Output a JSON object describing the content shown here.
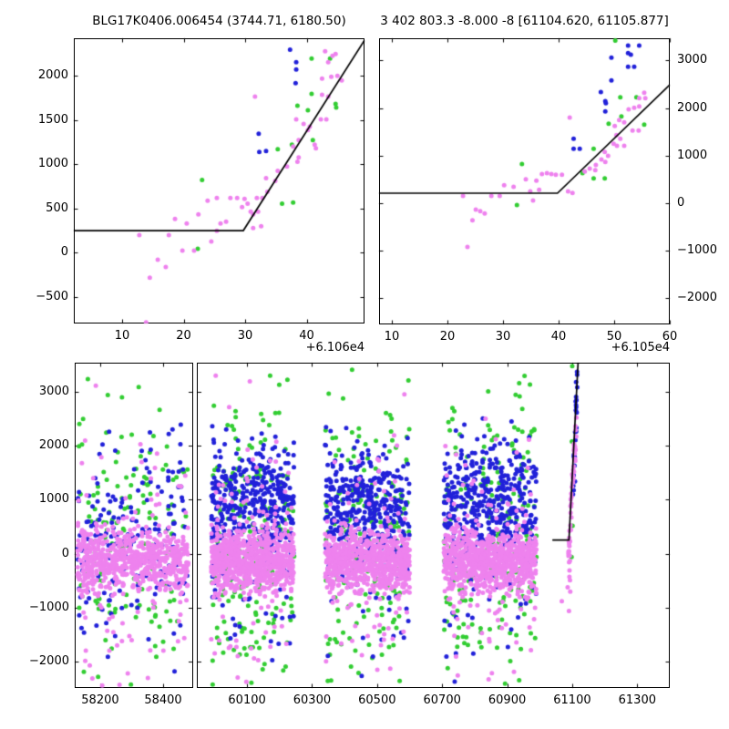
{
  "colors": {
    "pink": "#EE82EE",
    "green": "#32CD32",
    "blue": "#2121D9",
    "model_line": "#000000",
    "background": "#FFFFFF"
  },
  "chart_data": {
    "type": "scatter",
    "top_left": {
      "title": "BLG17K0406.006454 (3744.71, 6180.50)",
      "x_offset_label": "+6.106e4",
      "x_ticks": [
        10,
        20,
        30,
        40
      ],
      "y_ticks": [
        -500,
        0,
        500,
        1000,
        1500,
        2000
      ],
      "x_range": [
        2.15,
        49.4
      ],
      "y_range": [
        -804,
        2423
      ],
      "model_line": [
        [
          2.15,
          247
        ],
        [
          29.7,
          247
        ],
        [
          49.4,
          2400
        ]
      ],
      "points": {
        "pink": [
          [
            43.0,
            2275
          ],
          [
            44.2,
            2224
          ],
          [
            44.7,
            2244
          ],
          [
            43.5,
            2152
          ],
          [
            42.5,
            1968
          ],
          [
            44.0,
            1988
          ],
          [
            45.0,
            1998
          ],
          [
            45.7,
            1947
          ],
          [
            42.5,
            1783
          ],
          [
            43.5,
            1762
          ],
          [
            31.6,
            1762
          ],
          [
            38.3,
            1506
          ],
          [
            39.5,
            1455
          ],
          [
            40.5,
            1424
          ],
          [
            42.3,
            1506
          ],
          [
            43.2,
            1506
          ],
          [
            40.2,
            1383
          ],
          [
            38.7,
            1270
          ],
          [
            41.3,
            1219
          ],
          [
            41.5,
            1178
          ],
          [
            38.7,
            1076
          ],
          [
            37.8,
            1199
          ],
          [
            36.8,
            973
          ],
          [
            38.5,
            1025
          ],
          [
            33.4,
            840
          ],
          [
            35.3,
            922
          ],
          [
            34.9,
            810
          ],
          [
            33.6,
            687
          ],
          [
            31.9,
            615
          ],
          [
            32.8,
            615
          ],
          [
            30.9,
            461
          ],
          [
            32.1,
            461
          ],
          [
            27.6,
            615
          ],
          [
            28.7,
            615
          ],
          [
            29.9,
            605
          ],
          [
            30.4,
            553
          ],
          [
            31.3,
            430
          ],
          [
            29.5,
            512
          ],
          [
            23.9,
            584
          ],
          [
            25.4,
            615
          ],
          [
            18.6,
            379
          ],
          [
            20.5,
            328
          ],
          [
            22.4,
            430
          ],
          [
            26.0,
            328
          ],
          [
            26.9,
            348
          ],
          [
            32.6,
            297
          ],
          [
            31.3,
            276
          ],
          [
            25.4,
            246
          ],
          [
            12.8,
            195
          ],
          [
            17.6,
            195
          ],
          [
            24.5,
            123
          ],
          [
            19.8,
            20
          ],
          [
            21.7,
            20
          ],
          [
            15.8,
            -82
          ],
          [
            17.1,
            -164
          ],
          [
            14.5,
            -287
          ],
          [
            13.9,
            -790
          ]
        ],
        "green": [
          [
            40.8,
            2193
          ],
          [
            43.8,
            2193
          ],
          [
            40.8,
            1793
          ],
          [
            38.5,
            1660
          ],
          [
            40.2,
            1608
          ],
          [
            44.7,
            1680
          ],
          [
            44.8,
            1640
          ],
          [
            41.0,
            1270
          ],
          [
            35.3,
            1168
          ],
          [
            37.6,
            1219
          ],
          [
            23.0,
            820
          ],
          [
            36.0,
            553
          ],
          [
            37.8,
            564
          ],
          [
            22.3,
            41
          ]
        ],
        "blue": [
          [
            37.3,
            2295
          ],
          [
            38.3,
            2152
          ],
          [
            38.3,
            2070
          ],
          [
            38.2,
            1916
          ],
          [
            32.2,
            1342
          ],
          [
            32.3,
            1137
          ],
          [
            33.4,
            1147
          ]
        ]
      }
    },
    "top_right": {
      "title": "3 402 803.3 -8.000 -8 [61104.620, 61105.877]",
      "x_offset_label": "+6.105e4",
      "x_ticks": [
        10,
        20,
        30,
        40,
        50,
        60
      ],
      "y_ticks": [
        -2000,
        -1000,
        0,
        1000,
        2000,
        3000
      ],
      "x_range": [
        7.7,
        60.0
      ],
      "y_range": [
        -2548,
        3467
      ],
      "model_line": [
        [
          7.7,
          210
        ],
        [
          39.8,
          210
        ],
        [
          60.0,
          2490
        ]
      ],
      "points": {
        "pink": [
          [
            55.4,
            2324
          ],
          [
            54.5,
            2209
          ],
          [
            55.6,
            2209
          ],
          [
            53.6,
            2006
          ],
          [
            54.5,
            2037
          ],
          [
            52.6,
            1973
          ],
          [
            50.9,
            1749
          ],
          [
            51.8,
            1699
          ],
          [
            50.1,
            1622
          ],
          [
            53.3,
            1526
          ],
          [
            54.4,
            1526
          ],
          [
            50.4,
            1431
          ],
          [
            51.1,
            1354
          ],
          [
            49.9,
            1251
          ],
          [
            50.5,
            1207
          ],
          [
            51.8,
            1207
          ],
          [
            48.3,
            1078
          ],
          [
            48.9,
            996
          ],
          [
            47.7,
            920
          ],
          [
            48.4,
            868
          ],
          [
            46.7,
            805
          ],
          [
            45.6,
            728
          ],
          [
            46.6,
            696
          ],
          [
            44.7,
            665
          ],
          [
            42.0,
            1801
          ],
          [
            41.7,
            249
          ],
          [
            42.5,
            217
          ],
          [
            40.6,
            600
          ],
          [
            39.5,
            600
          ],
          [
            38.7,
            613
          ],
          [
            37.9,
            632
          ],
          [
            37.0,
            613
          ],
          [
            36.0,
            473
          ],
          [
            34.1,
            504
          ],
          [
            31.9,
            345
          ],
          [
            30.2,
            377
          ],
          [
            29.4,
            153
          ],
          [
            27.9,
            153
          ],
          [
            25.9,
            -167
          ],
          [
            25.1,
            -134
          ],
          [
            26.7,
            -217
          ],
          [
            24.5,
            -358
          ],
          [
            22.8,
            153
          ],
          [
            23.6,
            -920
          ],
          [
            35.4,
            57
          ],
          [
            36.5,
            282
          ],
          [
            34.9,
            249
          ]
        ],
        "green": [
          [
            50.2,
            3420
          ],
          [
            51.1,
            2228
          ],
          [
            51.3,
            1826
          ],
          [
            54.0,
            2228
          ],
          [
            55.4,
            1653
          ],
          [
            49.0,
            1672
          ],
          [
            46.3,
            1143
          ],
          [
            44.3,
            632
          ],
          [
            33.4,
            824
          ],
          [
            46.3,
            523
          ],
          [
            48.3,
            523
          ],
          [
            32.5,
            -38
          ]
        ],
        "blue": [
          [
            52.5,
            3315
          ],
          [
            54.5,
            3315
          ],
          [
            52.5,
            3155
          ],
          [
            53.0,
            3120
          ],
          [
            49.5,
            3059
          ],
          [
            52.5,
            2868
          ],
          [
            53.6,
            2868
          ],
          [
            49.5,
            2580
          ],
          [
            47.6,
            2337
          ],
          [
            48.4,
            2146
          ],
          [
            48.5,
            2100
          ],
          [
            48.4,
            1929
          ],
          [
            42.7,
            1354
          ],
          [
            42.7,
            1143
          ],
          [
            43.8,
            1143
          ]
        ]
      }
    },
    "bottom": {
      "y_ticks": [
        -2000,
        -1000,
        0,
        1000,
        2000,
        3000
      ],
      "y_range": [
        -2488,
        3542
      ],
      "left_sub": {
        "x_ticks": [
          58200,
          58400
        ],
        "x_range": [
          58119,
          58494
        ]
      },
      "right_sub": {
        "x_ticks": [
          60100,
          60300,
          60500,
          60700,
          60900,
          61100,
          61300
        ],
        "x_range": [
          59947,
          61400
        ]
      },
      "model_line": [
        [
          61039,
          255
        ],
        [
          61090,
          255
        ],
        [
          61118,
          3542
        ]
      ],
      "clusters": [
        {
          "sub": "left",
          "x_min": 58128,
          "x_max": 58480,
          "series": [
            {
              "color": "green",
              "n": 150,
              "dist": "gauss",
              "mean": 300,
              "sd": 1400,
              "clip": [
                -2470,
                3430
              ]
            },
            {
              "color": "blue",
              "n": 170,
              "dist": "gauss",
              "mean": 450,
              "sd": 800,
              "clip": [
                -2400,
                3300
              ]
            },
            {
              "color": "blue",
              "n": 18,
              "dist": "gauss",
              "mean": -700,
              "sd": 650,
              "clip": [
                -2430,
                0
              ]
            },
            {
              "color": "pink",
              "n": 95,
              "dist": "gauss",
              "mean": -150,
              "sd": 1300,
              "clip": [
                -2470,
                3400
              ]
            },
            {
              "color": "pink",
              "n": 650,
              "dist": "gauss",
              "mean": -140,
              "sd": 270,
              "clip": [
                -900,
                700
              ]
            }
          ]
        },
        {
          "sub": "right",
          "x_min": 59990,
          "x_max": 60245,
          "series": [
            {
              "color": "green",
              "n": 190,
              "dist": "gauss",
              "mean": 300,
              "sd": 1400,
              "clip": [
                -2470,
                3430
              ]
            },
            {
              "color": "blue",
              "n": 420,
              "dist": "gauss",
              "mean": 850,
              "sd": 620,
              "clip": [
                -2350,
                3400
              ]
            },
            {
              "color": "blue",
              "n": 30,
              "dist": "gauss",
              "mean": -600,
              "sd": 700,
              "clip": [
                -2430,
                100
              ]
            },
            {
              "color": "pink",
              "n": 105,
              "dist": "gauss",
              "mean": -150,
              "sd": 1300,
              "clip": [
                -2470,
                3400
              ]
            },
            {
              "color": "pink",
              "n": 760,
              "dist": "gauss",
              "mean": -140,
              "sd": 270,
              "clip": [
                -950,
                700
              ]
            }
          ]
        },
        {
          "sub": "right",
          "x_min": 60340,
          "x_max": 60600,
          "series": [
            {
              "color": "green",
              "n": 180,
              "dist": "gauss",
              "mean": 300,
              "sd": 1400,
              "clip": [
                -2470,
                3430
              ]
            },
            {
              "color": "blue",
              "n": 400,
              "dist": "gauss",
              "mean": 850,
              "sd": 620,
              "clip": [
                -2350,
                3400
              ]
            },
            {
              "color": "blue",
              "n": 28,
              "dist": "gauss",
              "mean": -600,
              "sd": 700,
              "clip": [
                -2430,
                100
              ]
            },
            {
              "color": "pink",
              "n": 100,
              "dist": "gauss",
              "mean": -150,
              "sd": 1300,
              "clip": [
                -2470,
                3400
              ]
            },
            {
              "color": "pink",
              "n": 740,
              "dist": "gauss",
              "mean": -140,
              "sd": 270,
              "clip": [
                -950,
                700
              ]
            }
          ]
        },
        {
          "sub": "right",
          "x_min": 60705,
          "x_max": 60990,
          "series": [
            {
              "color": "green",
              "n": 195,
              "dist": "gauss",
              "mean": 300,
              "sd": 1400,
              "clip": [
                -2470,
                3430
              ]
            },
            {
              "color": "blue",
              "n": 430,
              "dist": "gauss",
              "mean": 900,
              "sd": 620,
              "clip": [
                -2350,
                3400
              ]
            },
            {
              "color": "blue",
              "n": 30,
              "dist": "gauss",
              "mean": -600,
              "sd": 700,
              "clip": [
                -2430,
                100
              ]
            },
            {
              "color": "pink",
              "n": 105,
              "dist": "gauss",
              "mean": -150,
              "sd": 1300,
              "clip": [
                -2470,
                3400
              ]
            },
            {
              "color": "pink",
              "n": 780,
              "dist": "gauss",
              "mean": -140,
              "sd": 270,
              "clip": [
                -950,
                700
              ]
            }
          ]
        },
        {
          "sub": "right",
          "x_min": 61076,
          "x_max": 61118,
          "series": [
            {
              "color": "pink",
              "n": 40,
              "dist": "line",
              "p1": [
                61090,
                250
              ],
              "p2": [
                61112,
                2330
              ],
              "jx": 1.6,
              "jy": 90
            },
            {
              "color": "pink",
              "n": 13,
              "dist": "line",
              "p1": [
                61089,
                -520
              ],
              "p2": [
                61091,
                250
              ],
              "jx": 1.4,
              "jy": 60
            },
            {
              "color": "blue",
              "n": 26,
              "dist": "line",
              "p1": [
                61104,
                1150
              ],
              "p2": [
                61117,
                3470
              ],
              "jx": 1.4,
              "jy": 110
            }
          ]
        }
      ],
      "extra_points": {
        "green": [
          [
            61100,
            3480
          ],
          [
            61099,
            2080
          ],
          [
            61101,
            520
          ],
          [
            61098,
            -60
          ]
        ],
        "pink": [
          [
            61068,
            -880
          ],
          [
            61086,
            -620
          ],
          [
            61094,
            -700
          ],
          [
            61090,
            -1060
          ]
        ],
        "blue": []
      }
    }
  }
}
